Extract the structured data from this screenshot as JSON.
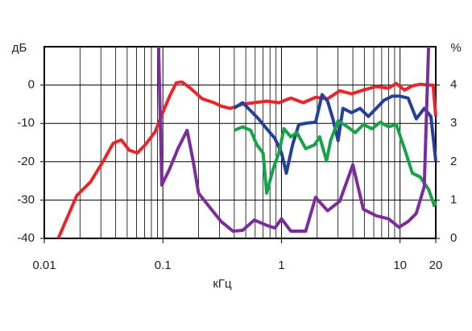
{
  "chart_data": {
    "type": "line",
    "y_label": "дБ",
    "y2_label": "%",
    "x_label": "кГц",
    "xscale": "log",
    "xlim": [
      0.01,
      20
    ],
    "xticks": [
      0.01,
      0.1,
      1,
      10,
      20
    ],
    "ylim": [
      -40,
      10
    ],
    "yticks": [
      -40,
      -30,
      -20,
      -10,
      0
    ],
    "y2lim": [
      0,
      5
    ],
    "y2ticks": [
      0,
      1,
      2,
      3,
      4
    ],
    "grid": true,
    "series": [
      {
        "color": "#e8262a",
        "x": [
          0.0131,
          0.0188,
          0.0245,
          0.0315,
          0.038,
          0.0445,
          0.052,
          0.061,
          0.071,
          0.086,
          0.098,
          0.114,
          0.13,
          0.145,
          0.17,
          0.215,
          0.27,
          0.31,
          0.37,
          0.47,
          0.59,
          0.75,
          0.95,
          1.2,
          1.53,
          1.94,
          2.45,
          3.1,
          3.9,
          4.9,
          6.3,
          8,
          9.3,
          10.9,
          12.7,
          14.8,
          17.4,
          19,
          20
        ],
        "values": [
          -40,
          -28.8,
          -25.3,
          -19.8,
          -15.2,
          -14.3,
          -17,
          -17.7,
          -15.6,
          -12.2,
          -7.8,
          -2.9,
          0.6,
          0.8,
          -0.8,
          -3.6,
          -4.6,
          -5.5,
          -6.1,
          -5,
          -4.6,
          -4.2,
          -4.6,
          -3.4,
          -4.6,
          -3.2,
          -3.6,
          -1.5,
          -2.3,
          -1.3,
          -0.4,
          -0.8,
          0.4,
          -1.3,
          -0.2,
          0.2,
          0,
          0,
          -8.2
        ]
      },
      {
        "color": "#24409a",
        "x": [
          0.4,
          0.47,
          0.55,
          0.64,
          0.75,
          0.88,
          1.0,
          1.1,
          1.24,
          1.4,
          1.66,
          1.94,
          2.2,
          2.45,
          2.7,
          3.0,
          3.3,
          3.9,
          4.6,
          5.4,
          6.3,
          7.3,
          8.6,
          10,
          11.7,
          13.7,
          16,
          18.2,
          20
        ],
        "values": [
          -6,
          -4.6,
          -6.7,
          -8.8,
          -11.4,
          -13.9,
          -17.7,
          -23,
          -15.6,
          -10.3,
          -9.9,
          -9.7,
          -2.5,
          -4.2,
          -8.6,
          -14.5,
          -6.1,
          -7.2,
          -6.1,
          -8.2,
          -6.1,
          -4,
          -2.9,
          -2.9,
          -3.4,
          -8.8,
          -6.1,
          -8.2,
          -19.8
        ]
      },
      {
        "color": "#17a34a",
        "x": [
          0.4,
          0.47,
          0.55,
          0.62,
          0.7,
          0.75,
          0.85,
          0.95,
          1.05,
          1.2,
          1.35,
          1.6,
          1.9,
          2.1,
          2.4,
          2.6,
          3.0,
          3.6,
          4.2,
          4.9,
          5.8,
          6.8,
          8,
          9.3,
          10.9,
          12.7,
          14.8,
          17.4,
          19.4,
          20
        ],
        "values": [
          -11.8,
          -10.9,
          -11.8,
          -15.6,
          -17.7,
          -28.2,
          -21.9,
          -17.7,
          -11.4,
          -13.5,
          -12.4,
          -16.6,
          -15.6,
          -13.5,
          -19.8,
          -14.5,
          -9.3,
          -10.9,
          -12.4,
          -10.3,
          -11.4,
          -9.7,
          -10.9,
          -10.3,
          -16.6,
          -23,
          -24,
          -27.2,
          -31.4,
          -30.3
        ]
      },
      {
        "color": "#7b2e9b",
        "axis": "y2",
        "x": [
          0.092,
          0.098,
          0.114,
          0.134,
          0.16,
          0.18,
          0.2,
          0.25,
          0.31,
          0.39,
          0.47,
          0.59,
          0.75,
          0.88,
          1,
          1.2,
          1.6,
          1.94,
          2.45,
          3.1,
          4,
          4.9,
          6.3,
          8,
          9.8,
          11.7,
          13.7,
          16,
          17.4
        ],
        "values": [
          5,
          1.39,
          1.81,
          2.34,
          2.82,
          2.02,
          1.18,
          0.8,
          0.44,
          0.19,
          0.21,
          0.48,
          0.34,
          0.27,
          0.51,
          0.19,
          0.19,
          1.07,
          0.72,
          0.97,
          1.92,
          0.76,
          0.59,
          0.51,
          0.29,
          0.44,
          0.65,
          1.35,
          5
        ]
      }
    ]
  }
}
